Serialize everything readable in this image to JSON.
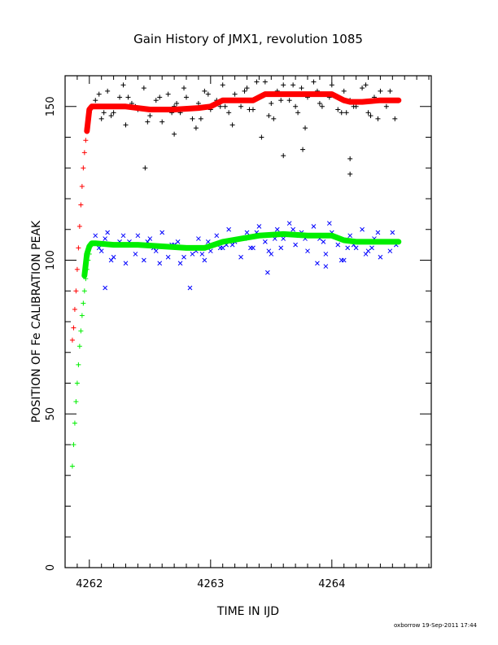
{
  "chart_data": {
    "type": "scatter",
    "title": "Gain History of JMX1, revolution 1085",
    "xlabel": "TIME IN IJD",
    "ylabel": "POSITION OF Fe CALIBRATION PEAK",
    "xlim": [
      4261.8,
      4264.82
    ],
    "ylim": [
      0,
      160
    ],
    "xticks": [
      4262,
      4263,
      4264
    ],
    "xtick_labels": [
      "4262",
      "4263",
      "4264"
    ],
    "yticks": [
      0,
      50,
      100,
      150
    ],
    "ytick_labels": [
      "0",
      "50",
      "100",
      "150"
    ],
    "grid": false,
    "legend": "none",
    "series": [
      {
        "kind": "trend",
        "color": "#ff0000",
        "marker": "line",
        "x": [
          4261.98,
          4262.0,
          4262.02,
          4262.05,
          4262.1,
          4262.3,
          4262.5,
          4262.7,
          4262.9,
          4263.0,
          4263.1,
          4263.2,
          4263.35,
          4263.45,
          4263.6,
          4263.8,
          4264.0,
          4264.1,
          4264.15,
          4264.25,
          4264.4,
          4264.55
        ],
        "y": [
          142,
          149,
          150,
          150,
          150,
          150,
          149,
          149,
          149.5,
          150,
          152,
          152,
          152,
          154,
          154,
          154,
          154,
          152,
          151.5,
          151.5,
          152,
          152
        ]
      },
      {
        "kind": "trend",
        "color": "#00ee00",
        "marker": "line",
        "x": [
          4261.96,
          4261.98,
          4262.0,
          4262.02,
          4262.05,
          4262.2,
          4262.4,
          4262.6,
          4262.8,
          4262.95,
          4263.1,
          4263.25,
          4263.4,
          4263.6,
          4263.8,
          4264.0,
          4264.1,
          4264.2,
          4264.4,
          4264.55
        ],
        "y": [
          95,
          102,
          104.5,
          105.5,
          105.5,
          105,
          105,
          104.5,
          104,
          104,
          106,
          107,
          108,
          108.5,
          108,
          108,
          106.5,
          106,
          106,
          106
        ]
      },
      {
        "kind": "ramp",
        "color": "#ff0000",
        "marker": "plus",
        "x": [
          4261.86,
          4261.87,
          4261.88,
          4261.89,
          4261.9,
          4261.91,
          4261.92,
          4261.93,
          4261.94,
          4261.95,
          4261.96,
          4261.97,
          4261.98,
          4261.99,
          4262.0
        ],
        "y": [
          74,
          78,
          84,
          90,
          97,
          104,
          111,
          118,
          124,
          130,
          135,
          139,
          143,
          146,
          148
        ]
      },
      {
        "kind": "ramp",
        "color": "#00ee00",
        "marker": "plus",
        "x": [
          4261.86,
          4261.87,
          4261.88,
          4261.89,
          4261.9,
          4261.91,
          4261.92,
          4261.93,
          4261.94,
          4261.95,
          4261.96,
          4261.97,
          4261.98,
          4261.99,
          4262.0
        ],
        "y": [
          33,
          40,
          47,
          54,
          60,
          66,
          72,
          77,
          82,
          86,
          90,
          94,
          97,
          100,
          102
        ]
      },
      {
        "kind": "points",
        "color": "#000000",
        "marker": "plus",
        "x": [
          4262.05,
          4262.1,
          4262.15,
          4262.2,
          4262.25,
          4262.3,
          4262.35,
          4262.4,
          4262.45,
          4262.5,
          4262.55,
          4262.6,
          4262.65,
          4262.7,
          4262.75,
          4262.8,
          4262.85,
          4262.9,
          4262.95,
          4263.0,
          4263.05,
          4263.1,
          4263.15,
          4263.2,
          4263.25,
          4263.3,
          4263.35,
          4263.4,
          4263.45,
          4263.5,
          4263.55,
          4263.6,
          4263.65,
          4263.7,
          4263.75,
          4263.8,
          4263.85,
          4263.9,
          4263.95,
          4264.0,
          4264.05,
          4264.1,
          4264.15,
          4264.2,
          4264.25,
          4264.3,
          4264.35,
          4264.4,
          4264.45,
          4264.5,
          4262.08,
          4262.18,
          4262.28,
          4262.38,
          4262.48,
          4262.58,
          4262.68,
          4262.78,
          4262.88,
          4262.98,
          4263.08,
          4263.18,
          4263.28,
          4263.38,
          4263.48,
          4263.58,
          4263.68,
          4263.78,
          4263.88,
          4263.98,
          4264.08,
          4264.18,
          4264.28,
          4264.38,
          4264.48,
          4262.12,
          4262.32,
          4262.52,
          4262.72,
          4262.92,
          4263.12,
          4263.32,
          4263.52,
          4263.72,
          4263.92,
          4264.12,
          4264.32,
          4264.52,
          4262.46,
          4262.7,
          4263.42,
          4263.6,
          4263.76,
          4264.15,
          4264.15
        ],
        "y": [
          152,
          146,
          155,
          148,
          153,
          144,
          151,
          149,
          156,
          147,
          152,
          145,
          154,
          150,
          148,
          153,
          146,
          151,
          155,
          149,
          152,
          157,
          148,
          154,
          150,
          156,
          149,
          153,
          158,
          151,
          155,
          157,
          152,
          150,
          156,
          153,
          158,
          151,
          154,
          157,
          149,
          155,
          152,
          150,
          156,
          148,
          153,
          155,
          150,
          152,
          154,
          147,
          157,
          150,
          145,
          153,
          148,
          156,
          143,
          154,
          150,
          144,
          155,
          158,
          147,
          152,
          157,
          143,
          155,
          153,
          148,
          150,
          157,
          146,
          155,
          148,
          153,
          149,
          151,
          146,
          150,
          149,
          146,
          148,
          150,
          148,
          147,
          146,
          130,
          141,
          140,
          134,
          136,
          133,
          128
        ]
      },
      {
        "kind": "points",
        "color": "#0000ff",
        "marker": "cross",
        "x": [
          4262.05,
          4262.1,
          4262.15,
          4262.2,
          4262.25,
          4262.3,
          4262.35,
          4262.4,
          4262.45,
          4262.5,
          4262.55,
          4262.6,
          4262.65,
          4262.7,
          4262.75,
          4262.8,
          4262.85,
          4262.9,
          4262.95,
          4263.0,
          4263.05,
          4263.1,
          4263.15,
          4263.2,
          4263.25,
          4263.3,
          4263.35,
          4263.4,
          4263.45,
          4263.5,
          4263.55,
          4263.6,
          4263.65,
          4263.7,
          4263.75,
          4263.8,
          4263.85,
          4263.9,
          4263.95,
          4264.0,
          4264.05,
          4264.1,
          4264.15,
          4264.2,
          4264.25,
          4264.3,
          4264.35,
          4264.4,
          4264.45,
          4264.5,
          4262.08,
          4262.18,
          4262.28,
          4262.38,
          4262.48,
          4262.58,
          4262.68,
          4262.78,
          4262.88,
          4262.98,
          4263.08,
          4263.18,
          4263.28,
          4263.38,
          4263.48,
          4263.58,
          4263.68,
          4263.78,
          4263.88,
          4263.98,
          4264.08,
          4264.18,
          4264.28,
          4264.38,
          4264.48,
          4262.13,
          4262.33,
          4262.53,
          4262.73,
          4262.93,
          4263.13,
          4263.33,
          4263.53,
          4263.73,
          4263.93,
          4264.13,
          4264.33,
          4264.53,
          4262.13,
          4262.83,
          4263.47,
          4263.95
        ],
        "y": [
          108,
          103,
          109,
          101,
          106,
          99,
          105,
          108,
          100,
          107,
          103,
          109,
          101,
          105,
          99,
          104,
          102,
          107,
          100,
          103,
          108,
          104,
          110,
          106,
          101,
          109,
          104,
          111,
          106,
          102,
          110,
          107,
          112,
          105,
          109,
          103,
          111,
          107,
          102,
          109,
          105,
          100,
          108,
          104,
          110,
          103,
          107,
          101,
          106,
          109,
          104,
          100,
          108,
          102,
          106,
          99,
          105,
          101,
          103,
          106,
          104,
          105,
          107,
          109,
          103,
          104,
          110,
          107,
          99,
          112,
          100,
          105,
          102,
          109,
          103,
          107,
          106,
          104,
          106,
          102,
          105,
          104,
          107,
          108,
          106,
          104,
          104,
          105,
          91,
          91,
          96,
          98
        ]
      }
    ]
  },
  "footer": {
    "credit": "oxborrow 19-Sep-2011 17:44"
  }
}
